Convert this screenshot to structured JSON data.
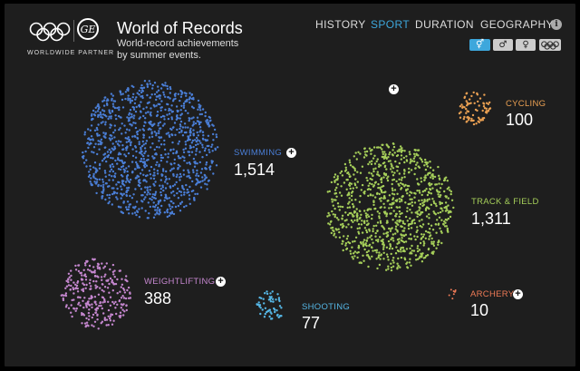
{
  "header": {
    "title": "World of Records",
    "subtitle": "World-record achievements by summer events.",
    "partner": "WORLDWIDE PARTNER"
  },
  "nav": [
    {
      "label": "HISTORY",
      "active": false
    },
    {
      "label": "SPORT",
      "active": true
    },
    {
      "label": "DURATION",
      "active": false
    },
    {
      "label": "GEOGRAPHY",
      "active": false
    }
  ],
  "info_icon": "i",
  "gender_filters": [
    {
      "label": "⚥",
      "icon": "all-genders-icon",
      "active": true
    },
    {
      "label": "♂",
      "icon": "male-icon",
      "active": false
    },
    {
      "label": "♀",
      "icon": "female-icon",
      "active": false
    },
    {
      "label": "rings",
      "icon": "olympic-rings-icon",
      "active": false
    }
  ],
  "colors": {
    "swimming": "#4a7ed6",
    "track": "#a6cf5a",
    "cycling": "#eaa052",
    "weightlifting": "#c587cf",
    "shooting": "#55b6e5",
    "archery": "#ee7a56",
    "accent": "#3da7dc"
  },
  "sports": [
    {
      "key": "swimming",
      "name": "SWIMMING",
      "count": "1,514",
      "value": 1514
    },
    {
      "key": "track",
      "name": "TRACK & FIELD",
      "count": "1,311",
      "value": 1311
    },
    {
      "key": "cycling",
      "name": "CYCLING",
      "count": "100",
      "value": 100
    },
    {
      "key": "weightlifting",
      "name": "WEIGHTLIFTING",
      "count": "388",
      "value": 388
    },
    {
      "key": "shooting",
      "name": "SHOOTING",
      "count": "77",
      "value": 77
    },
    {
      "key": "archery",
      "name": "ARCHERY",
      "count": "10",
      "value": 10
    }
  ]
}
